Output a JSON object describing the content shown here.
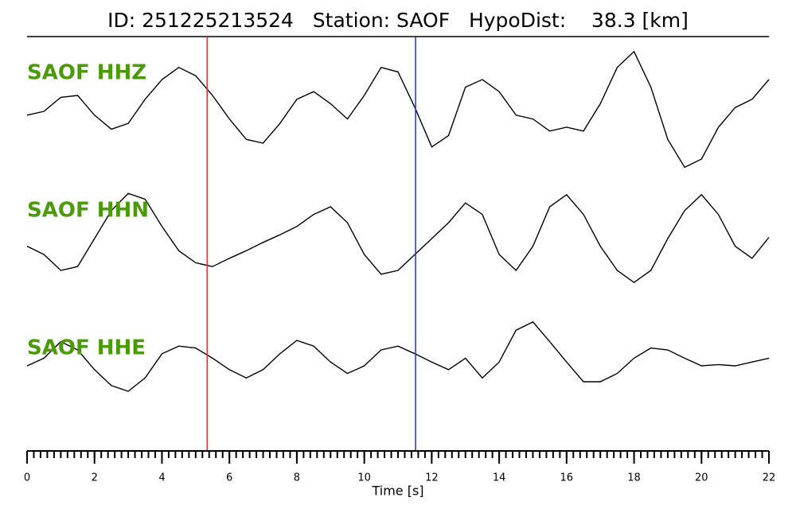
{
  "chart_data": {
    "type": "line",
    "title": "ID: 251225213524   Station: SAOF   HypoDist:    38.3 [km]",
    "xlabel": "Time [s]",
    "xlim": [
      0,
      22
    ],
    "xticks": [
      0,
      2,
      4,
      6,
      8,
      10,
      12,
      14,
      16,
      18,
      20,
      22
    ],
    "xminor_step": 0.2,
    "ylim": [
      -1,
      1
    ],
    "x": [
      0,
      0.5,
      1,
      1.5,
      2,
      2.5,
      3,
      3.5,
      4,
      4.5,
      5,
      5.5,
      6,
      6.5,
      7,
      7.5,
      8,
      8.5,
      9,
      9.5,
      10,
      10.5,
      11,
      11.5,
      12,
      12.5,
      13,
      13.5,
      14,
      14.5,
      15,
      15.5,
      16,
      16.5,
      17,
      17.5,
      18,
      18.5,
      19,
      19.5,
      20,
      20.5,
      21,
      21.5,
      22
    ],
    "label_color": "#4a9a0a",
    "series": [
      {
        "name": "SAOF HHZ",
        "color": "#000000",
        "values": [
          -0.06,
          0,
          0.22,
          0.25,
          -0.06,
          -0.28,
          -0.19,
          0.19,
          0.5,
          0.69,
          0.56,
          0.25,
          -0.12,
          -0.44,
          -0.5,
          -0.19,
          0.19,
          0.31,
          0.12,
          -0.12,
          0.25,
          0.69,
          0.62,
          0.06,
          -0.56,
          -0.38,
          0.38,
          0.5,
          0.31,
          -0.06,
          -0.12,
          -0.31,
          -0.25,
          -0.31,
          0.12,
          0.69,
          0.94,
          0.38,
          -0.44,
          -0.88,
          -0.75,
          -0.25,
          0.06,
          0.19,
          0.5
        ]
      },
      {
        "name": "SAOF HHN",
        "color": "#000000",
        "values": [
          -0.12,
          -0.25,
          -0.5,
          -0.44,
          0,
          0.44,
          0.71,
          0.62,
          0.19,
          -0.19,
          -0.38,
          -0.44,
          -0.31,
          -0.19,
          -0.06,
          0.06,
          0.19,
          0.38,
          0.5,
          0.25,
          -0.25,
          -0.56,
          -0.5,
          -0.25,
          0,
          0.25,
          0.56,
          0.38,
          -0.25,
          -0.5,
          -0.12,
          0.5,
          0.69,
          0.38,
          -0.12,
          -0.5,
          -0.69,
          -0.5,
          0,
          0.44,
          0.69,
          0.38,
          -0.12,
          -0.31,
          0.02
        ]
      },
      {
        "name": "SAOF HHE",
        "color": "#000000",
        "values": [
          0,
          0.12,
          0.38,
          0.25,
          -0.06,
          -0.31,
          -0.4,
          -0.19,
          0.19,
          0.31,
          0.28,
          0.12,
          -0.06,
          -0.19,
          -0.06,
          0.19,
          0.4,
          0.31,
          0.06,
          -0.12,
          0,
          0.25,
          0.31,
          0.19,
          0.06,
          -0.06,
          0.12,
          -0.19,
          0.06,
          0.56,
          0.69,
          0.38,
          0.06,
          -0.25,
          -0.25,
          -0.12,
          0.12,
          0.28,
          0.25,
          0.12,
          0,
          0.02,
          0,
          0.06,
          0.12
        ]
      }
    ],
    "vlines": [
      {
        "x": 5.34,
        "color": "#e03030"
      },
      {
        "x": 11.52,
        "color": "#2030d0"
      }
    ]
  }
}
